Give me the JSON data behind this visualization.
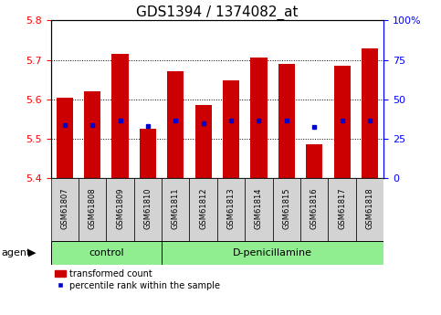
{
  "title": "GDS1394 / 1374082_at",
  "samples": [
    "GSM61807",
    "GSM61808",
    "GSM61809",
    "GSM61810",
    "GSM61811",
    "GSM61812",
    "GSM61813",
    "GSM61814",
    "GSM61815",
    "GSM61816",
    "GSM61817",
    "GSM61818"
  ],
  "bar_tops": [
    5.605,
    5.62,
    5.715,
    5.525,
    5.67,
    5.585,
    5.648,
    5.705,
    5.69,
    5.485,
    5.685,
    5.73
  ],
  "bar_bottom": 5.4,
  "percentile_values": [
    5.535,
    5.535,
    5.547,
    5.533,
    5.547,
    5.54,
    5.547,
    5.547,
    5.547,
    5.53,
    5.547,
    5.547
  ],
  "ylim_left": [
    5.4,
    5.8
  ],
  "ylim_right": [
    0,
    100
  ],
  "yticks_left": [
    5.4,
    5.5,
    5.6,
    5.7,
    5.8
  ],
  "yticks_right": [
    0,
    25,
    50,
    75,
    100
  ],
  "ytick_labels_right": [
    "0",
    "25",
    "50",
    "75",
    "100%"
  ],
  "control_samples": 4,
  "control_label": "control",
  "treatment_label": "D-penicillamine",
  "agent_label": "agent",
  "bar_color": "#cc0000",
  "percentile_color": "#0000cc",
  "bar_width": 0.6,
  "sample_box_color": "#d3d3d3",
  "agent_box_color": "#90ee90",
  "legend_bar_label": "transformed count",
  "legend_pct_label": "percentile rank within the sample",
  "title_fontsize": 11,
  "tick_fontsize": 8,
  "sample_fontsize": 6,
  "agent_fontsize": 8,
  "legend_fontsize": 7
}
